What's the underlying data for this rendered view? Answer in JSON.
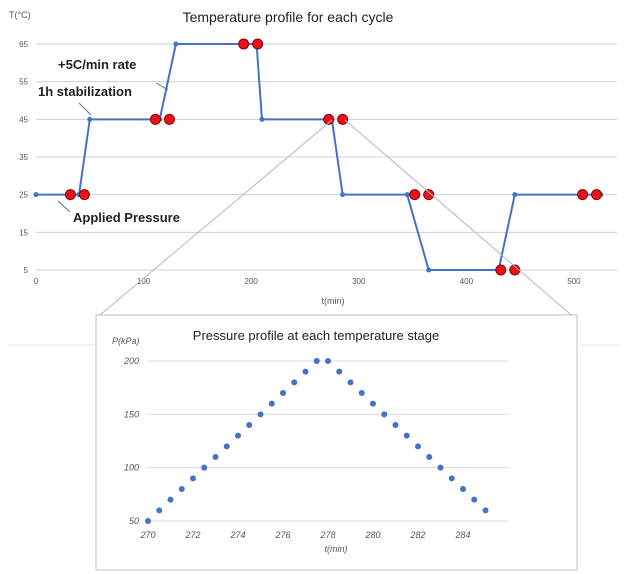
{
  "chart_data": [
    {
      "type": "line",
      "title": "Temperature  profile for each cycle",
      "xlabel": "t(min)",
      "ylabel": "T(°C)",
      "xlim": [
        0,
        540
      ],
      "ylim": [
        5,
        65
      ],
      "xticks": [
        0,
        100,
        200,
        300,
        400,
        500
      ],
      "yticks": [
        5,
        15,
        25,
        35,
        45,
        55,
        65
      ],
      "grid": true,
      "series": [
        {
          "x": [
            0,
            40,
            50,
            115,
            130,
            205,
            210,
            275,
            285,
            345,
            365,
            430,
            445,
            525
          ],
          "y": [
            25,
            25,
            45,
            45,
            65,
            65,
            45,
            45,
            25,
            25,
            5,
            5,
            25,
            25
          ]
        }
      ],
      "pressure_markers": [
        {
          "x": 32,
          "y": 25
        },
        {
          "x": 45,
          "y": 25
        },
        {
          "x": 111,
          "y": 45
        },
        {
          "x": 124,
          "y": 45
        },
        {
          "x": 193,
          "y": 65
        },
        {
          "x": 206,
          "y": 65
        },
        {
          "x": 272,
          "y": 45
        },
        {
          "x": 285,
          "y": 45
        },
        {
          "x": 352,
          "y": 25
        },
        {
          "x": 365,
          "y": 25
        },
        {
          "x": 432,
          "y": 5
        },
        {
          "x": 445,
          "y": 5
        },
        {
          "x": 508,
          "y": 25
        },
        {
          "x": 521,
          "y": 25
        }
      ],
      "annotations": [
        "+5C/min rate",
        "1h stabilization",
        "Applied Pressure"
      ]
    },
    {
      "type": "scatter",
      "title": "Pressure profile at each temperature stage",
      "xlabel": "t(min)",
      "ylabel": "P(kPa)",
      "xlim": [
        270,
        286
      ],
      "ylim": [
        50,
        200
      ],
      "xticks": [
        270,
        272,
        274,
        276,
        278,
        280,
        282,
        284
      ],
      "yticks": [
        50,
        100,
        150,
        200
      ],
      "grid": true,
      "series": [
        {
          "x": [
            270,
            270.5,
            271,
            271.5,
            272,
            272.5,
            273,
            273.5,
            274,
            274.5,
            275,
            275.5,
            276,
            276.5,
            277,
            277.5,
            278,
            278.5,
            279,
            279.5,
            280,
            280.5,
            281,
            281.5,
            282,
            282.5,
            283,
            283.5,
            284,
            284.5,
            285
          ],
          "y": [
            50,
            60,
            70,
            80,
            90,
            100,
            110,
            120,
            130,
            140,
            150,
            160,
            170,
            180,
            190,
            200,
            200,
            190,
            180,
            170,
            160,
            150,
            140,
            130,
            120,
            110,
            100,
            90,
            80,
            70,
            60
          ]
        }
      ]
    }
  ],
  "colors": {
    "line": "#4472c4",
    "marker": "#e8131a",
    "marker_edge": "#8b0000",
    "grid": "#d0d0d0",
    "zoom": "#a9b8cf"
  }
}
